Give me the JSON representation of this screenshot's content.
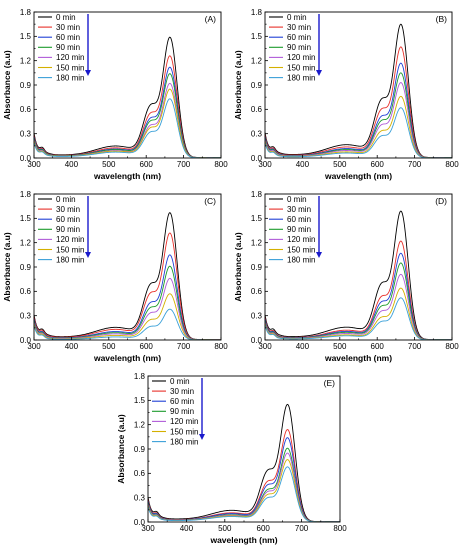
{
  "chart_data": [
    {
      "type": "line",
      "panel_label": "(A)",
      "xlabel": "wavelength (nm)",
      "ylabel": "Absorbance (a.u)",
      "xlim": [
        300,
        800
      ],
      "ylim": [
        0,
        1.8
      ],
      "xticks": [
        300,
        400,
        500,
        600,
        700,
        800
      ],
      "yticks": [
        0.0,
        0.3,
        0.6,
        0.9,
        1.2,
        1.5,
        1.8
      ],
      "legend_position": "top-left",
      "arrow": "down",
      "series": [
        {
          "name": "0 min",
          "color": "#000000",
          "peak": 1.49
        },
        {
          "name": "30 min",
          "color": "#e8302a",
          "peak": 1.26
        },
        {
          "name": "60 min",
          "color": "#1f3fd6",
          "peak": 1.12
        },
        {
          "name": "90 min",
          "color": "#1a9a2a",
          "peak": 1.04
        },
        {
          "name": "120 min",
          "color": "#b05cd8",
          "peak": 0.92
        },
        {
          "name": "150 min",
          "color": "#d4b000",
          "peak": 0.85
        },
        {
          "name": "180 min",
          "color": "#3aa0d8",
          "peak": 0.73
        }
      ]
    },
    {
      "type": "line",
      "panel_label": "(B)",
      "xlabel": "wavelength (nm)",
      "ylabel": "Absorbance (a.u)",
      "xlim": [
        300,
        800
      ],
      "ylim": [
        0,
        1.8
      ],
      "xticks": [
        300,
        400,
        500,
        600,
        700,
        800
      ],
      "yticks": [
        0.0,
        0.3,
        0.6,
        0.9,
        1.2,
        1.5,
        1.8
      ],
      "legend_position": "top-left",
      "arrow": "down",
      "series": [
        {
          "name": "0 min",
          "color": "#000000",
          "peak": 1.65
        },
        {
          "name": "30 min",
          "color": "#e8302a",
          "peak": 1.37
        },
        {
          "name": "60 min",
          "color": "#1f3fd6",
          "peak": 1.17
        },
        {
          "name": "90 min",
          "color": "#1a9a2a",
          "peak": 1.05
        },
        {
          "name": "120 min",
          "color": "#b05cd8",
          "peak": 0.93
        },
        {
          "name": "150 min",
          "color": "#d4b000",
          "peak": 0.76
        },
        {
          "name": "180 min",
          "color": "#3aa0d8",
          "peak": 0.62
        }
      ]
    },
    {
      "type": "line",
      "panel_label": "(C)",
      "xlabel": "wavelength (nm)",
      "ylabel": "Absorbance (a.u)",
      "xlim": [
        300,
        800
      ],
      "ylim": [
        0,
        1.8
      ],
      "xticks": [
        300,
        400,
        500,
        600,
        700,
        800
      ],
      "yticks": [
        0.0,
        0.3,
        0.6,
        0.9,
        1.2,
        1.5,
        1.8
      ],
      "legend_position": "top-left",
      "arrow": "down",
      "series": [
        {
          "name": "0 min",
          "color": "#000000",
          "peak": 1.57
        },
        {
          "name": "30 min",
          "color": "#e8302a",
          "peak": 1.32
        },
        {
          "name": "60 min",
          "color": "#1f3fd6",
          "peak": 1.05
        },
        {
          "name": "90 min",
          "color": "#1a9a2a",
          "peak": 0.91
        },
        {
          "name": "120 min",
          "color": "#b05cd8",
          "peak": 0.76
        },
        {
          "name": "150 min",
          "color": "#d4b000",
          "peak": 0.57
        },
        {
          "name": "180 min",
          "color": "#3aa0d8",
          "peak": 0.38
        }
      ]
    },
    {
      "type": "line",
      "panel_label": "(D)",
      "xlabel": "wavelength (nm)",
      "ylabel": "Absorbance (a.u)",
      "xlim": [
        300,
        800
      ],
      "ylim": [
        0,
        1.8
      ],
      "xticks": [
        300,
        400,
        500,
        600,
        700,
        800
      ],
      "yticks": [
        0.0,
        0.3,
        0.6,
        0.9,
        1.2,
        1.5,
        1.8
      ],
      "legend_position": "top-left",
      "arrow": "down",
      "series": [
        {
          "name": "0 min",
          "color": "#000000",
          "peak": 1.59
        },
        {
          "name": "30 min",
          "color": "#e8302a",
          "peak": 1.22
        },
        {
          "name": "60 min",
          "color": "#1f3fd6",
          "peak": 1.07
        },
        {
          "name": "90 min",
          "color": "#1a9a2a",
          "peak": 0.95
        },
        {
          "name": "120 min",
          "color": "#b05cd8",
          "peak": 0.81
        },
        {
          "name": "150 min",
          "color": "#d4b000",
          "peak": 0.64
        },
        {
          "name": "180 min",
          "color": "#3aa0d8",
          "peak": 0.52
        }
      ]
    },
    {
      "type": "line",
      "panel_label": "(E)",
      "xlabel": "wavelength (nm)",
      "ylabel": "Absorbance (a.u)",
      "xlim": [
        300,
        800
      ],
      "ylim": [
        0,
        1.8
      ],
      "xticks": [
        300,
        400,
        500,
        600,
        700,
        800
      ],
      "yticks": [
        0.0,
        0.3,
        0.6,
        0.9,
        1.2,
        1.5,
        1.8
      ],
      "legend_position": "top-left",
      "arrow": "down",
      "series": [
        {
          "name": "0 min",
          "color": "#000000",
          "peak": 1.45
        },
        {
          "name": "30 min",
          "color": "#e8302a",
          "peak": 1.14
        },
        {
          "name": "60 min",
          "color": "#1f3fd6",
          "peak": 1.04
        },
        {
          "name": "90 min",
          "color": "#1a9a2a",
          "peak": 0.91
        },
        {
          "name": "120 min",
          "color": "#b05cd8",
          "peak": 0.85
        },
        {
          "name": "150 min",
          "color": "#d4b000",
          "peak": 0.77
        },
        {
          "name": "180 min",
          "color": "#3aa0d8",
          "peak": 0.68
        }
      ]
    }
  ]
}
